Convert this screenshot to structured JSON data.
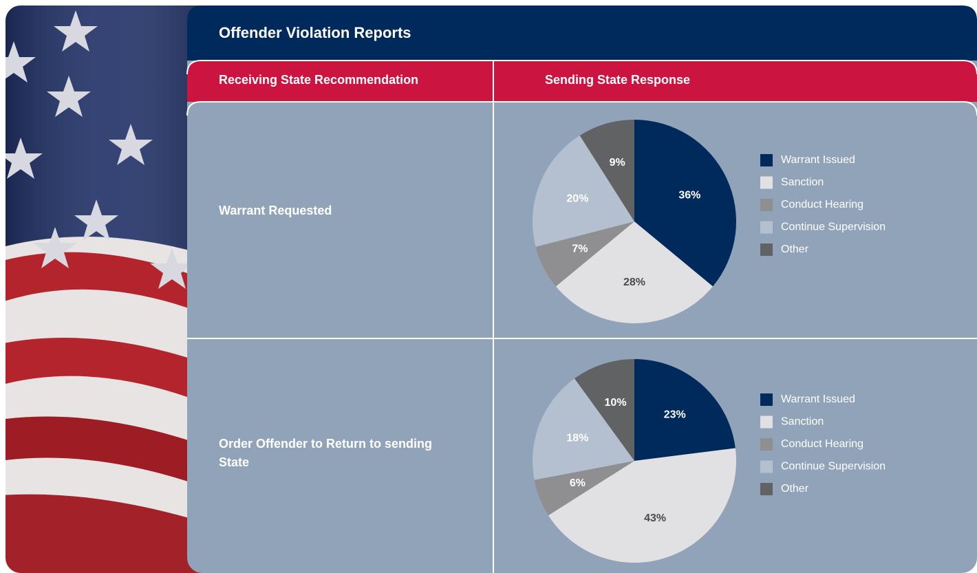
{
  "header": {
    "title": "Offender Violation Reports"
  },
  "columns": [
    "Receiving State Recommendation",
    "Sending State Response"
  ],
  "rows": [
    "Warrant Requested",
    "Order Offender to Return to sending State"
  ],
  "chart_data": [
    {
      "type": "pie",
      "categories": [
        "Warrant Issued",
        "Sanction",
        "Conduct Hearing",
        "Continue Supervision",
        "Other"
      ],
      "values": [
        36,
        28,
        7,
        20,
        9
      ],
      "value_labels": [
        "36%",
        "28%",
        "7%",
        "20%",
        "9%"
      ],
      "colors": [
        "#002a5c",
        "#e1e1e3",
        "#8f8f91",
        "#b4bfcf",
        "#616264"
      ]
    },
    {
      "type": "pie",
      "categories": [
        "Warrant Issued",
        "Sanction",
        "Conduct Hearing",
        "Continue Supervision",
        "Other"
      ],
      "values": [
        23,
        43,
        6,
        18,
        10
      ],
      "value_labels": [
        "23%",
        "43%",
        "6%",
        "18%",
        "10%"
      ],
      "colors": [
        "#002a5c",
        "#e1e1e3",
        "#8f8f91",
        "#b4bfcf",
        "#616264"
      ]
    }
  ]
}
